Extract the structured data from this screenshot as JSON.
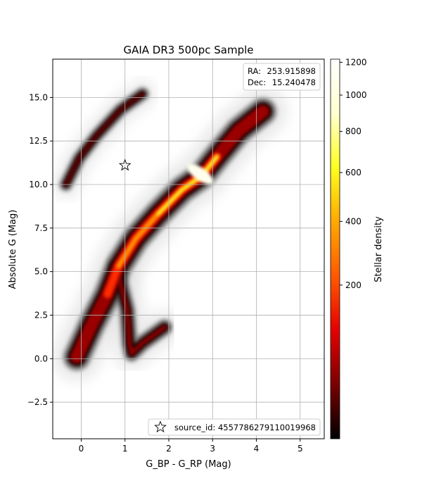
{
  "chart_data": {
    "type": "heatmap",
    "title": "GAIA DR3 500pc Sample",
    "xlabel": "G_BP - G_RP (Mag)",
    "ylabel": "Absolute G (Mag)",
    "xlim": [
      -0.65,
      5.55
    ],
    "ylim": [
      17.2,
      -4.6
    ],
    "y_inverted": true,
    "xticks": [
      0,
      1,
      2,
      3,
      4,
      5
    ],
    "xtick_labels": [
      "0",
      "1",
      "2",
      "3",
      "4",
      "5"
    ],
    "yticks": [
      -2.5,
      0.0,
      2.5,
      5.0,
      7.5,
      10.0,
      12.5,
      15.0
    ],
    "ytick_labels": [
      "−2.5",
      "0.0",
      "2.5",
      "5.0",
      "7.5",
      "10.0",
      "12.5",
      "15.0"
    ],
    "grid": true,
    "colorbar": {
      "label": "Stellar density",
      "scale": "power",
      "vmin": 0,
      "vmax": 1220,
      "ticks": [
        200,
        400,
        600,
        800,
        1000,
        1200
      ],
      "tick_labels": [
        "200",
        "400",
        "600",
        "800",
        "1000",
        "1200"
      ],
      "colormap": "hot_r",
      "colors": [
        "#000000",
        "#7a0000",
        "#e60000",
        "#ff5a00",
        "#ffa800",
        "#ffff1e",
        "#ffffd0",
        "#ffffff"
      ]
    },
    "info_box": {
      "position": "top-right",
      "ra_label": "RA:",
      "ra_value": "253.915898",
      "dec_label": "Dec:",
      "dec_value": "15.240478"
    },
    "marker": {
      "symbol": "star",
      "x": 1.0,
      "y": 11.1,
      "legend_label": "source_id: 4557786279110019968",
      "legend_position": "lower-right"
    },
    "density_features": [
      {
        "name": "main-sequence",
        "points": [
          [
            -0.1,
            0.1
          ],
          [
            0.25,
            2.0
          ],
          [
            0.6,
            3.7
          ],
          [
            0.85,
            5.3
          ],
          [
            1.25,
            6.9
          ],
          [
            1.75,
            8.3
          ],
          [
            2.3,
            9.7
          ],
          [
            2.75,
            10.5
          ],
          [
            3.1,
            11.6
          ],
          [
            3.6,
            13.1
          ],
          [
            4.15,
            14.2
          ]
        ]
      },
      {
        "name": "giant-branch",
        "points": [
          [
            0.8,
            5.2
          ],
          [
            1.05,
            2.8
          ],
          [
            1.1,
            0.9
          ],
          [
            1.15,
            0.3
          ],
          [
            1.4,
            0.9
          ],
          [
            1.9,
            1.8
          ]
        ]
      },
      {
        "name": "white-dwarf-sequence",
        "points": [
          [
            -0.35,
            10.0
          ],
          [
            -0.05,
            11.5
          ],
          [
            0.35,
            12.8
          ],
          [
            0.9,
            14.3
          ],
          [
            1.4,
            15.2
          ]
        ]
      }
    ]
  }
}
